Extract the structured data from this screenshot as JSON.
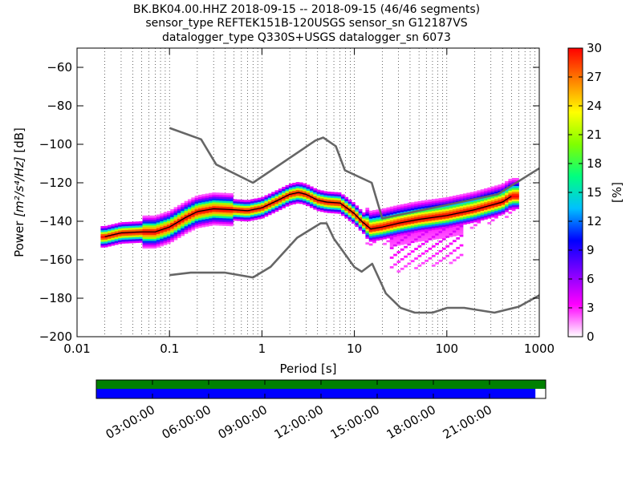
{
  "chart_data": {
    "type": "heatmap",
    "title_lines": [
      "BK.BK04.00.HHZ   2018-09-15 -- 2018-09-15  (46/46 segments)",
      "sensor_type REFTEK151B-120USGS sensor_sn G12187VS",
      "datalogger_type Q330S+USGS datalogger_sn 6073"
    ],
    "xlabel": "Period [s]",
    "ylabel_prefix": "Power ",
    "ylabel_math": "[m²/s⁴/Hz]",
    "ylabel_suffix": " [dB]",
    "xscale": "log",
    "xlim": [
      0.01,
      1000
    ],
    "ylim": [
      -200,
      -50
    ],
    "x_ticks": [
      {
        "value": 0.01,
        "label": "0.01"
      },
      {
        "value": 0.1,
        "label": "0.1"
      },
      {
        "value": 1,
        "label": "1"
      },
      {
        "value": 10,
        "label": "10"
      },
      {
        "value": 100,
        "label": "100"
      },
      {
        "value": 1000,
        "label": "1000"
      }
    ],
    "y_ticks": [
      {
        "value": -60,
        "label": "−60"
      },
      {
        "value": -80,
        "label": "−80"
      },
      {
        "value": -100,
        "label": "−100"
      },
      {
        "value": -120,
        "label": "−120"
      },
      {
        "value": -140,
        "label": "−140"
      },
      {
        "value": -160,
        "label": "−160"
      },
      {
        "value": -180,
        "label": "−180"
      },
      {
        "value": -200,
        "label": "−200"
      }
    ],
    "grid": "dotted vertical",
    "colorbar": {
      "label": "[%]",
      "range": [
        0,
        30
      ],
      "ticks": [
        "0",
        "3",
        "6",
        "9",
        "12",
        "15",
        "18",
        "21",
        "24",
        "27",
        "30"
      ],
      "colors": [
        "#ffffff",
        "#ff00ff",
        "#8000ff",
        "#0000ff",
        "#00c0ff",
        "#00ff80",
        "#80ff00",
        "#ffff00",
        "#ff8000",
        "#ff0000"
      ]
    },
    "new_high_noise_model": {
      "x": [
        0.1,
        0.22,
        0.32,
        0.8,
        3.8,
        4.6,
        6.3,
        7.9,
        15.4,
        20,
        354.8,
        1000
      ],
      "y": [
        -91.5,
        -97.4,
        -110.5,
        -120.0,
        -98.0,
        -96.5,
        -101.0,
        -113.5,
        -120.0,
        -138.5,
        -126.0,
        -112.5
      ]
    },
    "new_low_noise_model": {
      "x": [
        0.1,
        0.17,
        0.4,
        0.8,
        1.24,
        2.4,
        4.3,
        5.0,
        6.0,
        10,
        12,
        15.6,
        21.9,
        31.6,
        45,
        70,
        101,
        154,
        328,
        600,
        1000
      ],
      "y": [
        -168.0,
        -166.7,
        -166.7,
        -169.2,
        -163.7,
        -148.6,
        -141.1,
        -141.1,
        -149.0,
        -163.8,
        -166.2,
        -162.1,
        -177.5,
        -185.0,
        -187.5,
        -187.5,
        -185.0,
        -185.0,
        -187.5,
        -184.4,
        -178.5
      ]
    },
    "mean_curve": {
      "x": [
        0.02,
        0.03,
        0.05,
        0.07,
        0.1,
        0.15,
        0.2,
        0.3,
        0.5,
        0.7,
        1,
        1.5,
        2,
        2.5,
        3,
        4,
        5,
        7,
        10,
        12,
        15,
        20,
        30,
        50,
        100,
        200,
        400,
        500
      ],
      "y": [
        -148,
        -146,
        -145.5,
        -145.5,
        -143,
        -138,
        -135,
        -133.5,
        -134,
        -134.5,
        -133,
        -129,
        -126,
        -125,
        -126,
        -129,
        -130,
        -130.5,
        -136,
        -140,
        -144,
        -143,
        -141,
        -139,
        -137,
        -134,
        -130,
        -127
      ]
    },
    "time_axis": {
      "tick_labels": [
        "03:00:00",
        "06:00:00",
        "09:00:00",
        "12:00:00",
        "15:00:00",
        "18:00:00",
        "21:00:00"
      ],
      "tick_hours": [
        3,
        6,
        9,
        12,
        15,
        18,
        21
      ],
      "range_hours": [
        0,
        24
      ],
      "data_coverage_hours": [
        0,
        24
      ],
      "processed_coverage_hours": [
        0,
        23.45
      ],
      "colors": {
        "data": "#008000",
        "processed": "#0000ff"
      }
    }
  }
}
